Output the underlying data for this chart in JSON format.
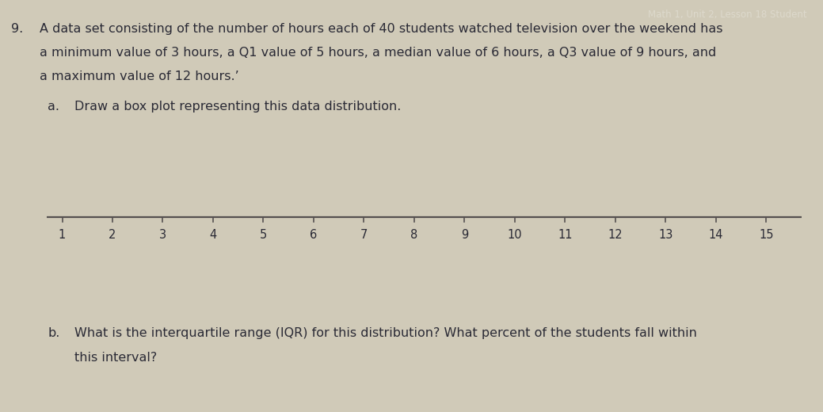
{
  "background_color": "#cec8b8",
  "background_center_color": "#d8d2c2",
  "header_text": "Math 1, Unit 2, Lesson 18 Student",
  "problem_text_line1": "A data set consisting of the number of hours each of 40 students watched television over the weekend has",
  "problem_text_line2": "a minimum value of 3 hours, a Q1 value of 5 hours, a median value of 6 hours, a Q3 value of 9 hours, and",
  "problem_text_line3": "a maximum value of 12 hours.’",
  "problem_label": "9.",
  "part_a_label": "a.",
  "part_a_text": "Draw a box plot representing this data distribution.",
  "part_b_label": "b.",
  "part_b_text": "What is the interquartile range (IQR) for this distribution? What percent of the students fall within",
  "part_b_text2": "this interval?",
  "tick_positions": [
    1,
    2,
    3,
    4,
    5,
    6,
    7,
    8,
    9,
    10,
    11,
    12,
    13,
    14,
    15
  ],
  "text_color": "#2a2a35",
  "header_bg": "#6b6860",
  "header_text_color": "#ddd9cc",
  "number_line_color": "#555050",
  "font_size_body": 11.5,
  "font_size_header": 8.5,
  "font_size_tick": 10.5
}
